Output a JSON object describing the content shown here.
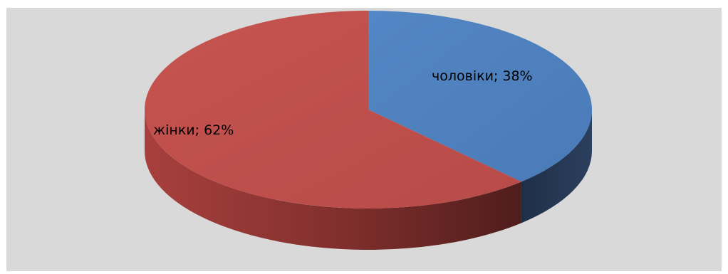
{
  "chart_data": {
    "type": "pie",
    "style": "3d",
    "categories": [
      "чоловіки",
      "жінки"
    ],
    "values": [
      38,
      62
    ],
    "units": "%",
    "data_labels": [
      "чоловіки; 38%",
      "жінки; 62%"
    ],
    "colors": [
      "#4f81bd",
      "#c0504d"
    ],
    "background_color": "#d9d9d9",
    "legend": "none",
    "title": ""
  }
}
